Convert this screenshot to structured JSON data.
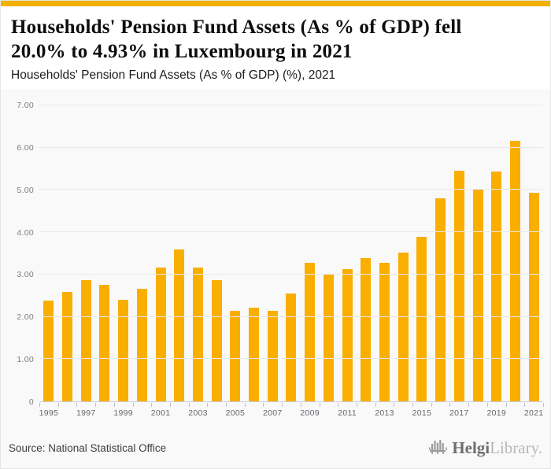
{
  "accent_color": "#F2B100",
  "bar_color": "#F9AE00",
  "header": {
    "title_lines": [
      "Households' Pension Fund Assets (As % of GDP) fell",
      "20.0% to 4.93% in Luxembourg in 2021"
    ],
    "subtitle": "Households' Pension Fund Assets (As % of GDP) (%), 2021"
  },
  "chart_data": {
    "type": "bar",
    "title": "Households' Pension Fund Assets (As % of GDP) (%), 2021",
    "categories": [
      "1995",
      "1996",
      "1997",
      "1998",
      "1999",
      "2000",
      "2001",
      "2002",
      "2003",
      "2004",
      "2005",
      "2006",
      "2007",
      "2008",
      "2009",
      "2010",
      "2011",
      "2012",
      "2013",
      "2014",
      "2015",
      "2016",
      "2017",
      "2018",
      "2019",
      "2020",
      "2021"
    ],
    "values": [
      2.38,
      2.58,
      2.86,
      2.76,
      2.41,
      2.67,
      3.17,
      3.59,
      3.17,
      2.86,
      2.15,
      2.21,
      2.15,
      2.56,
      3.28,
      3.0,
      3.13,
      3.39,
      3.28,
      3.52,
      3.89,
      4.81,
      5.46,
      5.01,
      5.44,
      6.16,
      4.93
    ],
    "xlabel": "",
    "ylabel": "",
    "ylim": [
      0,
      7
    ],
    "yticks": [
      "7.00",
      "6.00",
      "5.00",
      "4.00",
      "3.00",
      "2.00",
      "1.00",
      "0"
    ],
    "x_tick_labels": [
      "1995",
      "1997",
      "1999",
      "2001",
      "2003",
      "2005",
      "2007",
      "2009",
      "2011",
      "2013",
      "2015",
      "2017",
      "2019",
      "2021"
    ],
    "grid": true,
    "legend_position": "none",
    "bar_color": "#F9AE00"
  },
  "footer": {
    "source": "Source: National Statistical Office",
    "logo_primary": "Helgi",
    "logo_secondary": "Library."
  }
}
